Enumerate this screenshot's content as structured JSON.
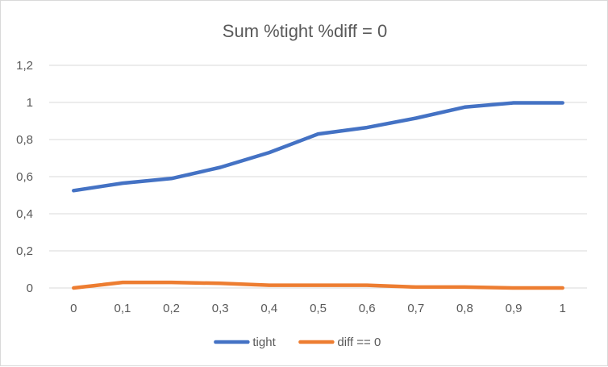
{
  "chart_data": {
    "type": "line",
    "title": "Sum %tight %diff = 0",
    "xlabel": "",
    "ylabel": "",
    "categories": [
      "0",
      "0,1",
      "0,2",
      "0,3",
      "0,4",
      "0,5",
      "0,6",
      "0,7",
      "0,8",
      "0,9",
      "1"
    ],
    "y_ticks": [
      "0",
      "0,2",
      "0,4",
      "0,6",
      "0,8",
      "1",
      "1,2"
    ],
    "ylim": [
      0,
      1.2
    ],
    "grid": "horizontal",
    "legend_position": "bottom",
    "series": [
      {
        "name": "tight",
        "color": "#4472c4",
        "values": [
          0.525,
          0.565,
          0.59,
          0.65,
          0.73,
          0.83,
          0.865,
          0.915,
          0.975,
          0.998,
          0.998
        ]
      },
      {
        "name": "diff == 0",
        "color": "#ed7d31",
        "values": [
          0.0,
          0.03,
          0.03,
          0.025,
          0.015,
          0.015,
          0.015,
          0.005,
          0.005,
          0.0,
          0.0
        ]
      }
    ]
  }
}
